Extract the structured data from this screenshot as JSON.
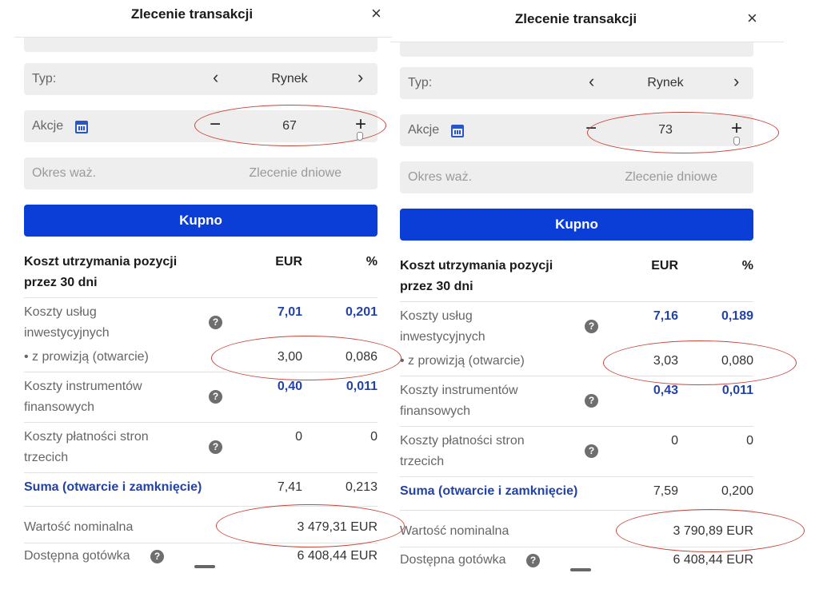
{
  "panels": [
    {
      "title": "Zlecenie transakcji",
      "close_icon": "×",
      "type": {
        "label": "Typ:",
        "value": "Rynek",
        "prev_icon": "‹",
        "next_icon": "›"
      },
      "shares": {
        "label": "Akcje",
        "value": "67",
        "minus": "−",
        "plus": "+"
      },
      "validity": {
        "label": "Okres waż.",
        "value": "Zlecenie dniowe"
      },
      "buy_button": "Kupno",
      "costs": {
        "heading_line1": "Koszt utrzymania pozycji",
        "heading_line2": "przez 30 dni",
        "col_eur": "EUR",
        "col_pct": "%",
        "investment_label_1": "Koszty usług",
        "investment_label_2": "inwestycyjnych",
        "investment_eur": "7,01",
        "investment_pct": "0,201",
        "commission_label": "• z prowizją (otwarcie)",
        "commission_eur": "3,00",
        "commission_pct": "0,086",
        "instruments_label_1": "Koszty instrumentów",
        "instruments_label_2": "finansowych",
        "instruments_eur": "0,40",
        "instruments_pct": "0,011",
        "third_label_1": "Koszty płatności stron",
        "third_label_2": "trzecich",
        "third_eur": "0",
        "third_pct": "0",
        "sum_label": "Suma (otwarcie i zamknięcie)",
        "sum_eur": "7,41",
        "sum_pct": "0,213",
        "help_icon": "?"
      },
      "nominal": {
        "label": "Wartość nominalna",
        "value": "3 479,31 EUR"
      },
      "cash": {
        "label": "Dostępna gotówka",
        "value": "6 408,44 EUR"
      }
    },
    {
      "title": "Zlecenie transakcji",
      "close_icon": "×",
      "type": {
        "label": "Typ:",
        "value": "Rynek",
        "prev_icon": "‹",
        "next_icon": "›"
      },
      "shares": {
        "label": "Akcje",
        "value": "73",
        "minus": "−",
        "plus": "+"
      },
      "validity": {
        "label": "Okres waż.",
        "value": "Zlecenie dniowe"
      },
      "buy_button": "Kupno",
      "costs": {
        "heading_line1": "Koszt utrzymania pozycji",
        "heading_line2": "przez 30 dni",
        "col_eur": "EUR",
        "col_pct": "%",
        "investment_label_1": "Koszty usług",
        "investment_label_2": "inwestycyjnych",
        "investment_eur": "7,16",
        "investment_pct": "0,189",
        "commission_label": "• z prowizją (otwarcie)",
        "commission_eur": "3,03",
        "commission_pct": "0,080",
        "instruments_label_1": "Koszty instrumentów",
        "instruments_label_2": "finansowych",
        "instruments_eur": "0,43",
        "instruments_pct": "0,011",
        "third_label_1": "Koszty płatności stron",
        "third_label_2": "trzecich",
        "third_eur": "0",
        "third_pct": "0",
        "sum_label": "Suma (otwarcie i zamknięcie)",
        "sum_eur": "7,59",
        "sum_pct": "0,200",
        "help_icon": "?"
      },
      "nominal": {
        "label": "Wartość nominalna",
        "value": "3 790,89 EUR"
      },
      "cash": {
        "label": "Dostępna gotówka",
        "value": "6 408,44 EUR"
      }
    }
  ],
  "colors": {
    "primary_button": "#0a3ed6",
    "link_blue": "#2342a8",
    "annotation_red": "#c8453a"
  }
}
